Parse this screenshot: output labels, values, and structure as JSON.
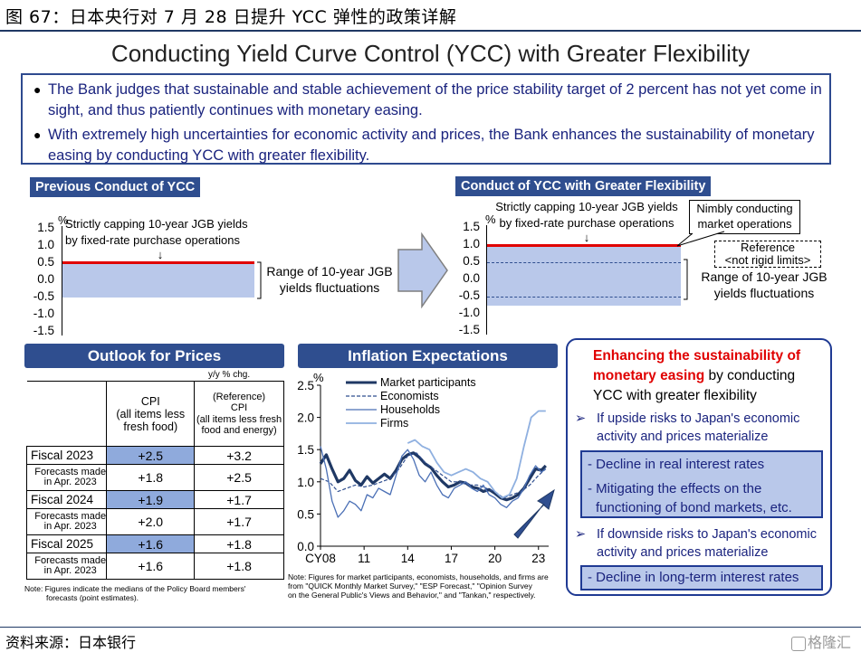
{
  "figure_title": "图 67：日本央行对 7 月 28 日提升 YCC 弹性的政策详解",
  "slide_title": "Conducting Yield Curve Control (YCC) with Greater Flexibility",
  "bullets": [
    "The Bank judges that sustainable and stable achievement of the price stability target of 2 percent has not yet come in sight, and thus patiently continues with monetary easing.",
    "With extremely high uncertainties for economic activity and prices, the Bank enhances the sustainability of monetary easing by conducting YCC with greater flexibility."
  ],
  "prev": {
    "label": "Previous Conduct of YCC",
    "unit": "%",
    "ticks": [
      "1.5",
      "1.0",
      "0.5",
      "0.0",
      "-0.5",
      "-1.0",
      "-1.5"
    ],
    "cap_note_1": "Strictly capping 10-year JGB yields",
    "cap_note_2": "by fixed-rate purchase operations",
    "arrow": "↓",
    "range_1": "Range of 10-year JGB",
    "range_2": "yields fluctuations"
  },
  "next": {
    "label": "Conduct of YCC with Greater Flexibility",
    "unit": "%",
    "ticks": [
      "1.5",
      "1.0",
      "0.5",
      "0.0",
      "-0.5",
      "-1.0",
      "-1.5"
    ],
    "cap_note_1": "Strictly capping 10-year JGB yields",
    "cap_note_2": "by fixed-rate purchase operations",
    "arrow": "↓",
    "nimbly_1": "Nimbly conducting",
    "nimbly_2": "market operations",
    "ref_1": "Reference",
    "ref_2": "<not rigid limits>",
    "range_1": "Range of 10-year JGB",
    "range_2": "yields fluctuations"
  },
  "outlook": {
    "title": "Outlook for Prices",
    "unit": "y/y % chg.",
    "col1": [
      "CPI",
      "(all items less",
      "fresh food)"
    ],
    "col2": [
      "(Reference)",
      "CPI",
      "(all items less fresh",
      "food and energy)"
    ],
    "rows": [
      {
        "label": "Fiscal 2023",
        "a": "+2.5",
        "b": "+3.2",
        "f1": "Forecasts made",
        "f2": "in Apr. 2023",
        "fa": "+1.8",
        "fb": "+2.5"
      },
      {
        "label": "Fiscal 2024",
        "a": "+1.9",
        "b": "+1.7",
        "f1": "Forecasts made",
        "f2": "in Apr. 2023",
        "fa": "+2.0",
        "fb": "+1.7"
      },
      {
        "label": "Fiscal 2025",
        "a": "+1.6",
        "b": "+1.8",
        "f1": "Forecasts made",
        "f2": "in Apr. 2023",
        "fa": "+1.6",
        "fb": "+1.8"
      }
    ],
    "note_1": "Note: Figures indicate the medians of the Policy Board members'",
    "note_2": "forecasts (point estimates)."
  },
  "inflation": {
    "title": "Inflation Expectations",
    "note_1": "Note: Figures for market participants, economists, households, and firms are",
    "note_2": "from \"QUICK Monthly Market Survey,\" \"ESP Forecast,\" \"Opinion Survey",
    "note_3": "on the General Public's Views and Behavior,\" and \"Tankan,\" respectively."
  },
  "chart_data": {
    "type": "line",
    "title": "Inflation Expectations",
    "ylabel": "%",
    "ylim": [
      0.0,
      2.5
    ],
    "yticks": [
      "0.0",
      "0.5",
      "1.0",
      "1.5",
      "2.0",
      "2.5"
    ],
    "xticks": [
      "CY08",
      "11",
      "14",
      "17",
      "20",
      "23"
    ],
    "xlim": [
      2008.0,
      2023.7
    ],
    "series": [
      {
        "name": "Market participants",
        "color": "#1f3864",
        "width": 3.2,
        "dash": "",
        "x": [
          2008.0,
          2008.4,
          2008.8,
          2009.2,
          2009.6,
          2010.0,
          2010.4,
          2010.8,
          2011.2,
          2011.6,
          2012.0,
          2012.4,
          2012.8,
          2013.2,
          2013.6,
          2014.0,
          2014.4,
          2014.8,
          2015.2,
          2015.6,
          2016.0,
          2016.4,
          2016.8,
          2017.2,
          2017.6,
          2018.0,
          2018.4,
          2018.8,
          2019.2,
          2019.6,
          2020.0,
          2020.4,
          2020.8,
          2021.2,
          2021.6,
          2022.0,
          2022.4,
          2022.8,
          2023.2,
          2023.5
        ],
        "y": [
          1.28,
          1.42,
          1.2,
          1.0,
          1.05,
          1.18,
          1.02,
          0.95,
          1.08,
          0.98,
          1.05,
          1.12,
          1.05,
          1.18,
          1.35,
          1.42,
          1.45,
          1.38,
          1.28,
          1.22,
          1.1,
          1.0,
          0.92,
          0.95,
          1.0,
          0.98,
          0.92,
          0.9,
          0.85,
          0.88,
          0.82,
          0.75,
          0.72,
          0.75,
          0.8,
          0.9,
          1.05,
          1.2,
          1.18,
          1.25
        ]
      },
      {
        "name": "Economists",
        "color": "#2f4e8f",
        "width": 1.2,
        "dash": "4,2",
        "x": [
          2008.0,
          2008.6,
          2009.2,
          2009.8,
          2010.4,
          2011.0,
          2011.6,
          2012.2,
          2012.8,
          2013.4,
          2014.0,
          2014.6,
          2015.2,
          2015.8,
          2016.4,
          2017.0,
          2017.6,
          2018.2,
          2018.8,
          2019.4,
          2020.0,
          2020.6,
          2021.2,
          2021.8,
          2022.4,
          2023.0,
          2023.5
        ],
        "y": [
          1.05,
          1.0,
          0.85,
          0.9,
          0.95,
          0.92,
          0.95,
          1.0,
          1.05,
          1.2,
          1.4,
          1.45,
          1.3,
          1.2,
          1.1,
          1.0,
          1.0,
          0.95,
          0.95,
          0.9,
          0.85,
          0.75,
          0.8,
          0.85,
          0.95,
          1.1,
          1.2
        ]
      },
      {
        "name": "Households",
        "color": "#4a6fb5",
        "width": 1.3,
        "dash": "",
        "x": [
          2008.0,
          2008.4,
          2008.8,
          2009.2,
          2009.6,
          2010.0,
          2010.4,
          2010.8,
          2011.2,
          2011.6,
          2012.0,
          2012.4,
          2012.8,
          2013.2,
          2013.6,
          2014.0,
          2014.4,
          2014.8,
          2015.2,
          2015.6,
          2016.0,
          2016.4,
          2016.8,
          2017.2,
          2017.6,
          2018.0,
          2018.4,
          2018.8,
          2019.2,
          2019.6,
          2020.0,
          2020.4,
          2020.8,
          2021.2,
          2021.6,
          2022.0,
          2022.4,
          2022.8,
          2023.2,
          2023.5
        ],
        "y": [
          1.55,
          1.2,
          0.7,
          0.45,
          0.55,
          0.7,
          0.65,
          0.55,
          0.8,
          0.75,
          0.9,
          0.85,
          0.8,
          1.1,
          1.4,
          1.5,
          1.35,
          1.1,
          1.0,
          1.15,
          0.95,
          0.8,
          0.75,
          0.9,
          0.95,
          1.0,
          0.9,
          0.85,
          0.95,
          0.8,
          0.75,
          0.65,
          0.6,
          0.7,
          0.75,
          0.9,
          1.1,
          1.25,
          1.15,
          1.2
        ]
      },
      {
        "name": "Firms",
        "color": "#8fb0e0",
        "width": 1.8,
        "dash": "",
        "x": [
          2014.0,
          2014.5,
          2015.0,
          2015.5,
          2016.0,
          2016.5,
          2017.0,
          2017.5,
          2018.0,
          2018.5,
          2019.0,
          2019.5,
          2020.0,
          2020.5,
          2021.0,
          2021.5,
          2022.0,
          2022.5,
          2023.0,
          2023.5
        ],
        "y": [
          1.6,
          1.65,
          1.55,
          1.5,
          1.3,
          1.15,
          1.1,
          1.15,
          1.2,
          1.15,
          1.05,
          1.0,
          0.85,
          0.75,
          0.8,
          1.05,
          1.55,
          2.0,
          2.1,
          2.1
        ]
      }
    ]
  },
  "right": {
    "head_red_1": "Enhancing the sustainability of",
    "head_red_2": "monetary easing",
    "head_black_2": " by conducting",
    "head_3": "YCC with greater flexibility",
    "up_1": "If upside risks to Japan's economic",
    "up_2": "activity and prices materialize",
    "up_box_1": "- Decline in real interest rates",
    "up_box_2a": "- Mitigating the effects on the",
    "up_box_2b": "functioning of bond markets, etc.",
    "down_1": "If downside risks to Japan's economic",
    "down_2": "activity and prices materialize",
    "down_box": "- Decline in long-term interest rates",
    "marker": "➢"
  },
  "source": "资料来源：日本银行",
  "watermark": "格隆汇"
}
